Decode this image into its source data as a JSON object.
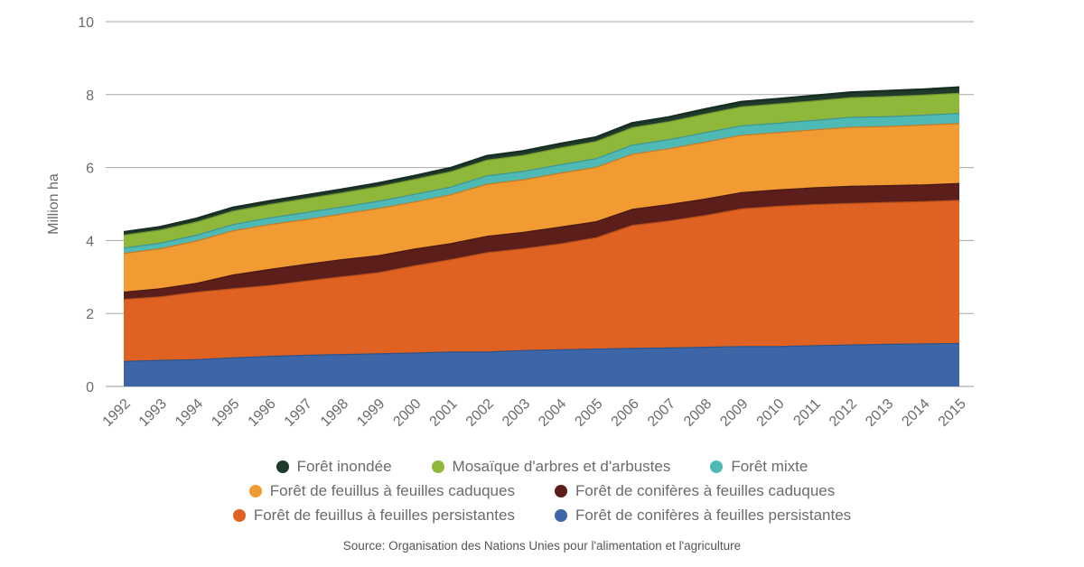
{
  "chart_data": {
    "type": "area",
    "stacked": true,
    "ylabel": "Million ha",
    "ylim": [
      0,
      10
    ],
    "yticks": [
      0,
      2,
      4,
      6,
      8,
      10
    ],
    "grid": true,
    "legend_position": "bottom",
    "x": [
      "1992",
      "1993",
      "1994",
      "1995",
      "1996",
      "1997",
      "1998",
      "1999",
      "2000",
      "2001",
      "2002",
      "2003",
      "2004",
      "2005",
      "2006",
      "2007",
      "2008",
      "2009",
      "2010",
      "2011",
      "2012",
      "2013",
      "2014",
      "2015"
    ],
    "series": [
      {
        "name": "Forêt de conifères à feuilles persistantes",
        "color": "#3c66a8",
        "values": [
          0.7,
          0.73,
          0.75,
          0.8,
          0.84,
          0.87,
          0.89,
          0.91,
          0.93,
          0.96,
          0.96,
          1.0,
          1.02,
          1.04,
          1.06,
          1.07,
          1.09,
          1.11,
          1.11,
          1.13,
          1.15,
          1.17,
          1.18,
          1.19
        ]
      },
      {
        "name": "Forêt de feuillus à feuilles persistantes",
        "color": "#e06222",
        "values": [
          1.7,
          1.74,
          1.85,
          1.89,
          1.94,
          2.03,
          2.13,
          2.22,
          2.39,
          2.53,
          2.72,
          2.79,
          2.9,
          3.05,
          3.37,
          3.48,
          3.61,
          3.77,
          3.84,
          3.87,
          3.88,
          3.89,
          3.9,
          3.93
        ]
      },
      {
        "name": "Forêt de conifères à feuilles caduques",
        "color": "#5b1e1a",
        "values": [
          0.2,
          0.22,
          0.24,
          0.38,
          0.44,
          0.46,
          0.47,
          0.47,
          0.46,
          0.44,
          0.45,
          0.45,
          0.46,
          0.44,
          0.44,
          0.45,
          0.45,
          0.45,
          0.45,
          0.46,
          0.47,
          0.46,
          0.46,
          0.46
        ]
      },
      {
        "name": "Forêt de feuillus à feuilles caduques",
        "color": "#f19b32",
        "values": [
          1.06,
          1.1,
          1.16,
          1.21,
          1.23,
          1.23,
          1.25,
          1.29,
          1.29,
          1.34,
          1.43,
          1.44,
          1.48,
          1.49,
          1.51,
          1.53,
          1.56,
          1.57,
          1.57,
          1.59,
          1.62,
          1.62,
          1.64,
          1.64
        ]
      },
      {
        "name": "Forêt mixte",
        "color": "#4fbab5",
        "values": [
          0.15,
          0.15,
          0.16,
          0.17,
          0.18,
          0.19,
          0.19,
          0.2,
          0.21,
          0.21,
          0.23,
          0.23,
          0.23,
          0.24,
          0.25,
          0.25,
          0.26,
          0.26,
          0.26,
          0.26,
          0.27,
          0.27,
          0.27,
          0.28
        ]
      },
      {
        "name": "Mosaïque d'arbres et d'arbustes",
        "color": "#8fb83b",
        "values": [
          0.35,
          0.36,
          0.36,
          0.37,
          0.37,
          0.38,
          0.39,
          0.4,
          0.41,
          0.42,
          0.43,
          0.44,
          0.46,
          0.47,
          0.48,
          0.49,
          0.51,
          0.52,
          0.53,
          0.53,
          0.54,
          0.55,
          0.55,
          0.55
        ]
      },
      {
        "name": "Forêt inondée",
        "color": "#1f3a2b",
        "values": [
          0.07,
          0.07,
          0.08,
          0.08,
          0.08,
          0.08,
          0.08,
          0.08,
          0.08,
          0.09,
          0.1,
          0.1,
          0.1,
          0.1,
          0.11,
          0.11,
          0.12,
          0.12,
          0.12,
          0.13,
          0.13,
          0.14,
          0.14,
          0.15
        ]
      }
    ]
  },
  "legend_rows": [
    [
      6,
      5,
      4
    ],
    [
      3,
      2
    ],
    [
      1,
      0
    ]
  ],
  "source": "Source: Organisation des Nations Unies pour l'alimentation et l'agriculture"
}
